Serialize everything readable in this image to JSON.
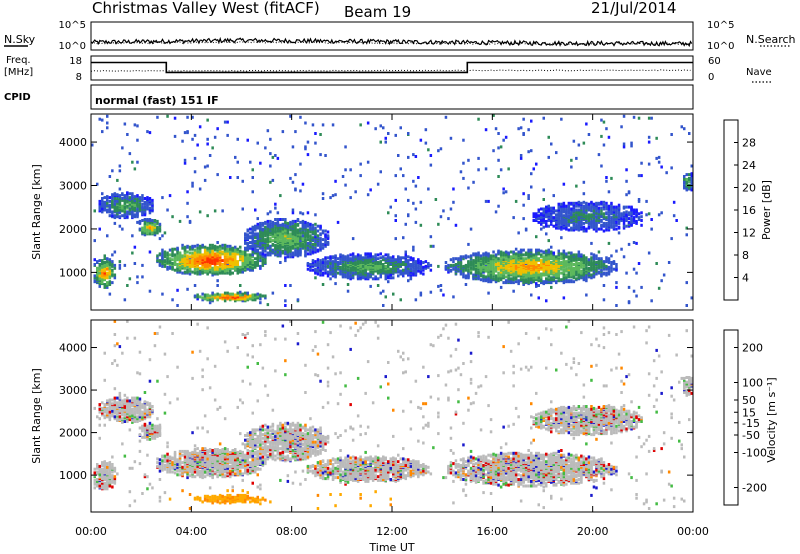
{
  "header": {
    "station": "Christmas Valley West (fitACF)",
    "beam": "Beam 19",
    "date": "21/Jul/2014"
  },
  "side_labels": {
    "nsky": "N.Sky",
    "nsearch": "N.Search",
    "freq": "Freq.",
    "freq_unit": "[MHz]",
    "nave": "Nave",
    "cpid": "CPID",
    "cpid_value": "normal (fast) 151 IF"
  },
  "noise_axis": {
    "left_ticks": [
      "10^5",
      "10^0"
    ],
    "right_ticks": [
      "10^5",
      "10^0"
    ]
  },
  "freq_axis": {
    "left_ticks": [
      "18",
      "8"
    ],
    "right_ticks": [
      "60",
      "0"
    ]
  },
  "colors": {
    "power": [
      "#1a1aff",
      "#3355cc",
      "#2e8b57",
      "#5cb85c",
      "#f0c000",
      "#ff8800",
      "#ff3300",
      "#e00000"
    ],
    "velocity": [
      "#e00000",
      "#ff4400",
      "#ff8800",
      "#ffaa00",
      "#bbbbbb",
      "#44bb44",
      "#227744",
      "#1a1acc"
    ]
  },
  "chart_data": [
    {
      "type": "line",
      "panel": "noise",
      "series": [
        {
          "name": "N.Sky",
          "style": "solid",
          "x": [
            "00:00",
            "06:00",
            "12:00",
            "18:00",
            "24:00"
          ],
          "values": [
            1.2,
            1.6,
            1.3,
            1.0,
            0.9
          ]
        },
        {
          "name": "N.Search",
          "style": "dotted",
          "x": [
            "00:00",
            "06:00",
            "12:00",
            "18:00",
            "24:00"
          ],
          "values": [
            1.0,
            1.2,
            1.0,
            0.9,
            0.9
          ]
        }
      ]
    },
    {
      "type": "line",
      "panel": "frequency",
      "series": [
        {
          "name": "Freq. [MHz]",
          "style": "solid",
          "x": [
            "00:00",
            "03:00",
            "03:00",
            "15:00",
            "15:00",
            "24:00"
          ],
          "values": [
            15.5,
            15.5,
            11.0,
            11.0,
            15.5,
            15.5
          ]
        },
        {
          "name": "Nave",
          "style": "dotted",
          "x": [
            "00:00",
            "24:00"
          ],
          "values": [
            22,
            24
          ]
        }
      ]
    },
    {
      "type": "heatmap",
      "panel": "power",
      "ylabel": "Slant Range [km]",
      "y_ticks": [
        1000,
        2000,
        3000,
        4000
      ],
      "ylim": [
        180,
        4600
      ],
      "colorbar_label": "Power [dB]",
      "colorbar_ticks": [
        4,
        8,
        12,
        16,
        20,
        24,
        28
      ],
      "colorbar_range": [
        0,
        32
      ],
      "regions": [
        {
          "t0": 0.0,
          "t1": 1.0,
          "r0": 600,
          "r1": 1300,
          "peak": 24
        },
        {
          "t0": 0.2,
          "t1": 2.5,
          "r0": 2200,
          "r1": 2800,
          "peak": 14
        },
        {
          "t0": 1.8,
          "t1": 2.8,
          "r0": 1800,
          "r1": 2200,
          "peak": 22
        },
        {
          "t0": 2.5,
          "t1": 7.0,
          "r0": 900,
          "r1": 1600,
          "peak": 28
        },
        {
          "t0": 4.0,
          "t1": 7.0,
          "r0": 300,
          "r1": 500,
          "peak": 28
        },
        {
          "t0": 6.0,
          "t1": 9.5,
          "r0": 1300,
          "r1": 2200,
          "peak": 16
        },
        {
          "t0": 8.5,
          "t1": 13.5,
          "r0": 800,
          "r1": 1400,
          "peak": 14
        },
        {
          "t0": 14.0,
          "t1": 21.0,
          "r0": 700,
          "r1": 1500,
          "peak": 22
        },
        {
          "t0": 17.5,
          "t1": 22.0,
          "r0": 1900,
          "r1": 2600,
          "peak": 10
        },
        {
          "t0": 23.5,
          "t1": 24.0,
          "r0": 2800,
          "r1": 3300,
          "peak": 14
        }
      ]
    },
    {
      "type": "heatmap",
      "panel": "velocity",
      "ylabel": "Slant Range [km]",
      "xlabel": "Time UT",
      "x_ticks": [
        "00:00",
        "04:00",
        "08:00",
        "12:00",
        "16:00",
        "20:00",
        "00:00"
      ],
      "y_ticks": [
        1000,
        2000,
        3000,
        4000
      ],
      "ylim": [
        180,
        4600
      ],
      "colorbar_label": "Velocity [m s⁻¹]",
      "colorbar_ticks": [
        -200,
        -100,
        -50,
        -15,
        15,
        50,
        100,
        200
      ],
      "colorbar_range": [
        -250,
        250
      ]
    }
  ]
}
